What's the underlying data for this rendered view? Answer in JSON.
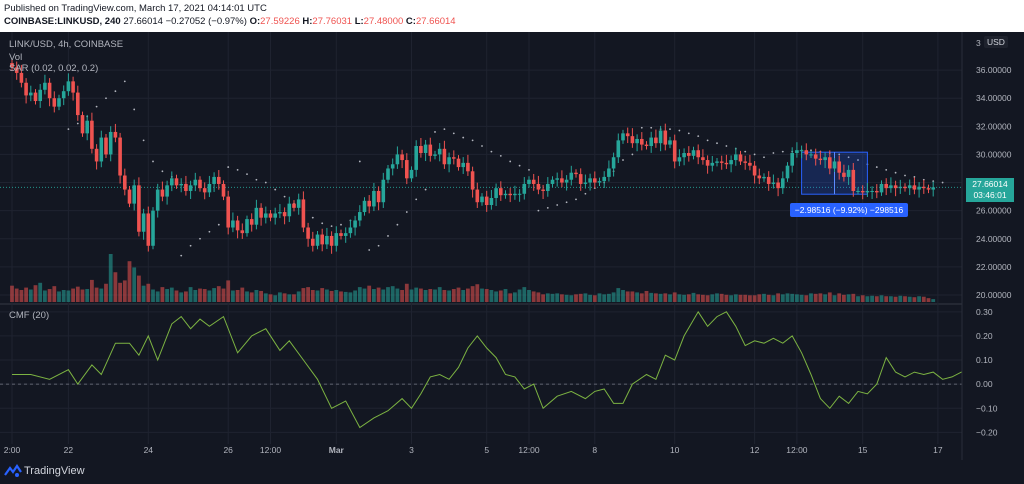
{
  "header": {
    "published": "Published on TradingView.com, March 17, 2021 04:14:01 UTC",
    "symbol": "COINBASE:LINKUSD, 240",
    "last": "27.66014",
    "change": "−0.27052 (−0.97%)",
    "o_label": "O:",
    "o_value": "27.59226",
    "h_label": "H:",
    "h_value": "27.76031",
    "l_label": "L:",
    "l_value": "27.48000",
    "c_label": "C:",
    "c_value": "27.66014"
  },
  "legend": {
    "pair": "LINK/USD, 4h, COINBASE",
    "vol": "Vol",
    "sar": "SAR (0.02, 0.02, 0.2)",
    "cmf": "CMF (20)"
  },
  "currency_button": "USD",
  "price_tag": {
    "price": "27.66014",
    "countdown": "03:46:01"
  },
  "measure_tooltip": "−2.98516 (−9.92%) −298516",
  "footer": {
    "brand": "TradingView"
  },
  "colors": {
    "bull": "#26a69a",
    "bear": "#ef5350",
    "sar": "#b2b5be",
    "cmf": "#7cb342",
    "background": "#131722",
    "grid": "#1f2330",
    "measure": "#2962ff"
  },
  "chart_data": [
    {
      "type": "candlestick",
      "title": "LINK/USD, 4h, COINBASE",
      "x_ticks": [
        {
          "i": 0,
          "label": "2:00"
        },
        {
          "i": 12,
          "label": "22"
        },
        {
          "i": 29,
          "label": "24"
        },
        {
          "i": 46,
          "label": "26"
        },
        {
          "i": 55,
          "label": "12:00"
        },
        {
          "i": 69,
          "label": "Mar"
        },
        {
          "i": 85,
          "label": "3"
        },
        {
          "i": 101,
          "label": "5"
        },
        {
          "i": 110,
          "label": "12:00"
        },
        {
          "i": 124,
          "label": "8"
        },
        {
          "i": 141,
          "label": "10"
        },
        {
          "i": 158,
          "label": "12"
        },
        {
          "i": 167,
          "label": "12:00"
        },
        {
          "i": 181,
          "label": "15"
        },
        {
          "i": 197,
          "label": "17"
        }
      ],
      "y_ticks": [
        "36.00000",
        "34.00000",
        "32.00000",
        "30.00000",
        "28.00000",
        "26.00000",
        "24.00000",
        "22.00000",
        "20.00000"
      ],
      "y_top_label": "3",
      "ylim": [
        19.5,
        38.0
      ],
      "last_price": 27.66014,
      "candles_close": [
        36.2,
        35.8,
        35.1,
        34.2,
        34.4,
        33.8,
        34.6,
        35.1,
        34.0,
        33.4,
        34.0,
        34.5,
        35.2,
        34.4,
        32.8,
        31.5,
        32.4,
        30.4,
        29.5,
        31.2,
        30.0,
        31.6,
        31.2,
        28.5,
        27.5,
        26.5,
        27.8,
        24.5,
        25.8,
        23.5,
        26.0,
        27.5,
        27.0,
        27.8,
        28.3,
        27.8,
        27.9,
        27.4,
        27.8,
        28.2,
        27.6,
        27.3,
        27.9,
        28.4,
        27.9,
        27.0,
        24.8,
        25.3,
        24.6,
        24.4,
        25.4,
        25.0,
        26.2,
        25.5,
        25.8,
        25.5,
        25.8,
        25.9,
        25.6,
        26.5,
        26.2,
        26.8,
        24.8,
        24.0,
        23.5,
        24.3,
        23.6,
        24.2,
        23.5,
        24.4,
        24.2,
        24.4,
        24.8,
        25.3,
        25.9,
        26.7,
        26.3,
        27.4,
        26.6,
        28.2,
        29.0,
        29.3,
        30.0,
        29.6,
        28.3,
        28.9,
        30.6,
        30.1,
        30.7,
        29.9,
        30.0,
        30.4,
        29.3,
        29.8,
        29.7,
        29.1,
        29.4,
        28.8,
        27.5,
        26.6,
        27.0,
        26.4,
        26.9,
        27.6,
        27.1,
        27.2,
        27.1,
        27.2,
        27.2,
        27.9,
        28.2,
        27.9,
        27.5,
        27.4,
        27.9,
        28.2,
        28.3,
        28.0,
        28.2,
        28.7,
        28.6,
        27.9,
        28.0,
        28.3,
        28.0,
        28.1,
        28.4,
        29.0,
        29.8,
        31.0,
        31.5,
        31.3,
        30.8,
        31.1,
        30.7,
        30.6,
        31.2,
        30.8,
        31.7,
        30.7,
        31.0,
        29.5,
        29.8,
        30.1,
        29.9,
        30.3,
        29.8,
        29.6,
        29.2,
        29.4,
        29.5,
        29.4,
        29.3,
        29.6,
        30.0,
        29.5,
        29.4,
        29.2,
        28.5,
        28.3,
        28.4,
        27.9,
        28.0,
        27.6,
        28.3,
        29.2,
        30.1,
        30.3,
        30.3,
        30.0,
        30.0,
        29.7,
        29.6,
        29.8,
        29.0,
        29.5,
        28.7,
        28.4,
        28.9,
        27.4,
        27.4,
        27.3,
        27.4,
        27.4,
        27.3,
        27.9,
        27.6,
        27.8,
        27.6,
        27.7,
        27.6,
        27.8,
        27.5,
        27.7,
        27.6,
        27.5,
        27.66
      ],
      "volume_rel": [
        0.34,
        0.28,
        0.25,
        0.3,
        0.26,
        0.35,
        0.4,
        0.24,
        0.27,
        0.33,
        0.22,
        0.25,
        0.24,
        0.28,
        0.32,
        0.26,
        0.27,
        0.46,
        0.3,
        0.28,
        0.38,
        1.0,
        0.62,
        0.4,
        0.45,
        0.85,
        0.72,
        0.55,
        0.34,
        0.38,
        0.26,
        0.22,
        0.31,
        0.27,
        0.3,
        0.24,
        0.2,
        0.22,
        0.31,
        0.25,
        0.28,
        0.27,
        0.24,
        0.29,
        0.33,
        0.28,
        0.45,
        0.24,
        0.25,
        0.3,
        0.22,
        0.2,
        0.25,
        0.23,
        0.18,
        0.16,
        0.14,
        0.2,
        0.18,
        0.16,
        0.16,
        0.22,
        0.29,
        0.31,
        0.25,
        0.24,
        0.29,
        0.26,
        0.23,
        0.25,
        0.22,
        0.21,
        0.2,
        0.24,
        0.31,
        0.28,
        0.34,
        0.27,
        0.3,
        0.26,
        0.31,
        0.33,
        0.28,
        0.25,
        0.38,
        0.26,
        0.3,
        0.28,
        0.25,
        0.27,
        0.26,
        0.31,
        0.25,
        0.24,
        0.27,
        0.3,
        0.25,
        0.28,
        0.33,
        0.37,
        0.28,
        0.27,
        0.25,
        0.22,
        0.24,
        0.27,
        0.18,
        0.2,
        0.26,
        0.31,
        0.25,
        0.22,
        0.2,
        0.16,
        0.18,
        0.17,
        0.18,
        0.16,
        0.15,
        0.14,
        0.16,
        0.17,
        0.18,
        0.15,
        0.14,
        0.18,
        0.16,
        0.17,
        0.2,
        0.29,
        0.25,
        0.22,
        0.22,
        0.2,
        0.18,
        0.23,
        0.19,
        0.18,
        0.17,
        0.18,
        0.16,
        0.2,
        0.16,
        0.15,
        0.16,
        0.19,
        0.16,
        0.15,
        0.14,
        0.16,
        0.18,
        0.17,
        0.15,
        0.14,
        0.16,
        0.15,
        0.15,
        0.14,
        0.14,
        0.16,
        0.17,
        0.15,
        0.14,
        0.18,
        0.16,
        0.18,
        0.17,
        0.16,
        0.15,
        0.14,
        0.18,
        0.17,
        0.18,
        0.16,
        0.2,
        0.14,
        0.18,
        0.15,
        0.16,
        0.17,
        0.12,
        0.14,
        0.12,
        0.13,
        0.12,
        0.14,
        0.12,
        0.12,
        0.11,
        0.13,
        0.12,
        0.11,
        0.1,
        0.12,
        0.11,
        0.08,
        0.06
      ],
      "sar": [
        [
          12,
          31.8
        ],
        [
          14,
          32.2
        ],
        [
          16,
          32.7
        ],
        [
          18,
          33.4
        ],
        [
          20,
          34.0
        ],
        [
          22,
          34.5
        ],
        [
          24,
          35.2
        ],
        [
          26,
          33.2
        ],
        [
          28,
          31.0
        ],
        [
          30,
          29.5
        ],
        [
          32,
          28.8
        ],
        [
          34,
          28.4
        ],
        [
          36,
          22.8
        ],
        [
          38,
          23.5
        ],
        [
          40,
          24.0
        ],
        [
          42,
          24.5
        ],
        [
          44,
          25.0
        ],
        [
          46,
          29.1
        ],
        [
          48,
          28.9
        ],
        [
          50,
          28.6
        ],
        [
          52,
          28.2
        ],
        [
          54,
          28.0
        ],
        [
          56,
          27.5
        ],
        [
          58,
          27.0
        ],
        [
          60,
          26.5
        ],
        [
          62,
          26.0
        ],
        [
          64,
          25.5
        ],
        [
          66,
          25.1
        ],
        [
          68,
          24.9
        ],
        [
          70,
          25.0
        ],
        [
          72,
          25.3
        ],
        [
          74,
          29.5
        ],
        [
          76,
          23.2
        ],
        [
          78,
          23.5
        ],
        [
          80,
          24.2
        ],
        [
          82,
          25.0
        ],
        [
          84,
          25.9
        ],
        [
          86,
          26.8
        ],
        [
          88,
          27.5
        ],
        [
          90,
          31.6
        ],
        [
          92,
          31.8
        ],
        [
          94,
          31.5
        ],
        [
          96,
          31.2
        ],
        [
          98,
          31.0
        ],
        [
          100,
          30.6
        ],
        [
          102,
          30.2
        ],
        [
          104,
          29.9
        ],
        [
          106,
          29.5
        ],
        [
          108,
          29.2
        ],
        [
          110,
          28.9
        ],
        [
          112,
          26.0
        ],
        [
          114,
          26.2
        ],
        [
          116,
          26.4
        ],
        [
          118,
          26.6
        ],
        [
          120,
          26.8
        ],
        [
          122,
          27.2
        ],
        [
          124,
          27.6
        ],
        [
          126,
          28.0
        ],
        [
          128,
          28.8
        ],
        [
          130,
          29.6
        ],
        [
          132,
          30.0
        ],
        [
          134,
          31.9
        ],
        [
          136,
          31.9
        ],
        [
          138,
          31.8
        ],
        [
          140,
          31.8
        ],
        [
          142,
          31.7
        ],
        [
          144,
          31.5
        ],
        [
          146,
          31.3
        ],
        [
          148,
          31.0
        ],
        [
          150,
          30.8
        ],
        [
          152,
          30.6
        ],
        [
          154,
          30.4
        ],
        [
          156,
          30.2
        ],
        [
          158,
          30.0
        ],
        [
          160,
          29.8
        ],
        [
          162,
          30.1
        ],
        [
          164,
          30.2
        ],
        [
          166,
          30.2
        ],
        [
          168,
          30.3
        ],
        [
          170,
          30.3
        ],
        [
          172,
          30.2
        ],
        [
          174,
          30.1
        ],
        [
          176,
          30.0
        ],
        [
          178,
          29.8
        ],
        [
          180,
          29.6
        ],
        [
          182,
          29.3
        ],
        [
          184,
          29.1
        ],
        [
          186,
          28.9
        ],
        [
          188,
          28.7
        ],
        [
          190,
          28.5
        ],
        [
          192,
          28.4
        ],
        [
          194,
          28.2
        ],
        [
          196,
          28.1
        ],
        [
          198,
          28.0
        ]
      ],
      "measure_box": {
        "i0": 168,
        "i1": 182,
        "p0": 30.16,
        "p1": 27.17
      }
    },
    {
      "type": "line",
      "title": "CMF (20)",
      "y_ticks": [
        "0.30",
        "0.20",
        "0.10",
        "0.00",
        "−0.10",
        "−0.20"
      ],
      "ylim": [
        -0.24,
        0.32
      ],
      "values": [
        [
          0,
          0.04
        ],
        [
          4,
          0.04
        ],
        [
          8,
          0.02
        ],
        [
          12,
          0.06
        ],
        [
          14,
          0.0
        ],
        [
          17,
          0.08
        ],
        [
          19,
          0.04
        ],
        [
          22,
          0.17
        ],
        [
          25,
          0.17
        ],
        [
          27,
          0.12
        ],
        [
          29,
          0.2
        ],
        [
          31,
          0.1
        ],
        [
          34,
          0.25
        ],
        [
          36,
          0.28
        ],
        [
          38,
          0.23
        ],
        [
          40,
          0.27
        ],
        [
          42,
          0.24
        ],
        [
          45,
          0.28
        ],
        [
          48,
          0.13
        ],
        [
          51,
          0.2
        ],
        [
          54,
          0.23
        ],
        [
          57,
          0.14
        ],
        [
          59,
          0.18
        ],
        [
          62,
          0.1
        ],
        [
          65,
          0.02
        ],
        [
          68,
          -0.1
        ],
        [
          71,
          -0.07
        ],
        [
          74,
          -0.18
        ],
        [
          77,
          -0.14
        ],
        [
          80,
          -0.11
        ],
        [
          83,
          -0.06
        ],
        [
          85,
          -0.1
        ],
        [
          87,
          -0.04
        ],
        [
          89,
          0.03
        ],
        [
          91,
          0.04
        ],
        [
          93,
          0.02
        ],
        [
          95,
          0.07
        ],
        [
          97,
          0.15
        ],
        [
          99,
          0.2
        ],
        [
          101,
          0.15
        ],
        [
          103,
          0.11
        ],
        [
          105,
          0.04
        ],
        [
          107,
          0.03
        ],
        [
          109,
          -0.02
        ],
        [
          111,
          0.0
        ],
        [
          113,
          -0.1
        ],
        [
          116,
          -0.05
        ],
        [
          119,
          -0.03
        ],
        [
          122,
          -0.06
        ],
        [
          124,
          -0.03
        ],
        [
          126,
          -0.02
        ],
        [
          128,
          -0.08
        ],
        [
          130,
          -0.08
        ],
        [
          132,
          0.0
        ],
        [
          135,
          0.04
        ],
        [
          137,
          0.02
        ],
        [
          139,
          0.12
        ],
        [
          141,
          0.1
        ],
        [
          143,
          0.2
        ],
        [
          146,
          0.3
        ],
        [
          148,
          0.24
        ],
        [
          150,
          0.28
        ],
        [
          152,
          0.3
        ],
        [
          154,
          0.24
        ],
        [
          156,
          0.16
        ],
        [
          158,
          0.18
        ],
        [
          160,
          0.17
        ],
        [
          162,
          0.19
        ],
        [
          164,
          0.17
        ],
        [
          166,
          0.2
        ],
        [
          168,
          0.13
        ],
        [
          170,
          0.04
        ],
        [
          172,
          -0.06
        ],
        [
          174,
          -0.1
        ],
        [
          176,
          -0.05
        ],
        [
          178,
          -0.08
        ],
        [
          180,
          -0.03
        ],
        [
          182,
          -0.04
        ],
        [
          184,
          0.0
        ],
        [
          186,
          0.11
        ],
        [
          188,
          0.05
        ],
        [
          190,
          0.03
        ],
        [
          192,
          0.05
        ],
        [
          194,
          0.04
        ],
        [
          196,
          0.05
        ],
        [
          198,
          0.02
        ],
        [
          200,
          0.03
        ],
        [
          202,
          0.05
        ],
        [
          204,
          0.01
        ],
        [
          206,
          0.0
        ],
        [
          208,
          -0.05
        ],
        [
          210,
          -0.02
        ],
        [
          212,
          -0.01
        ],
        [
          214,
          0.0
        ]
      ]
    }
  ]
}
